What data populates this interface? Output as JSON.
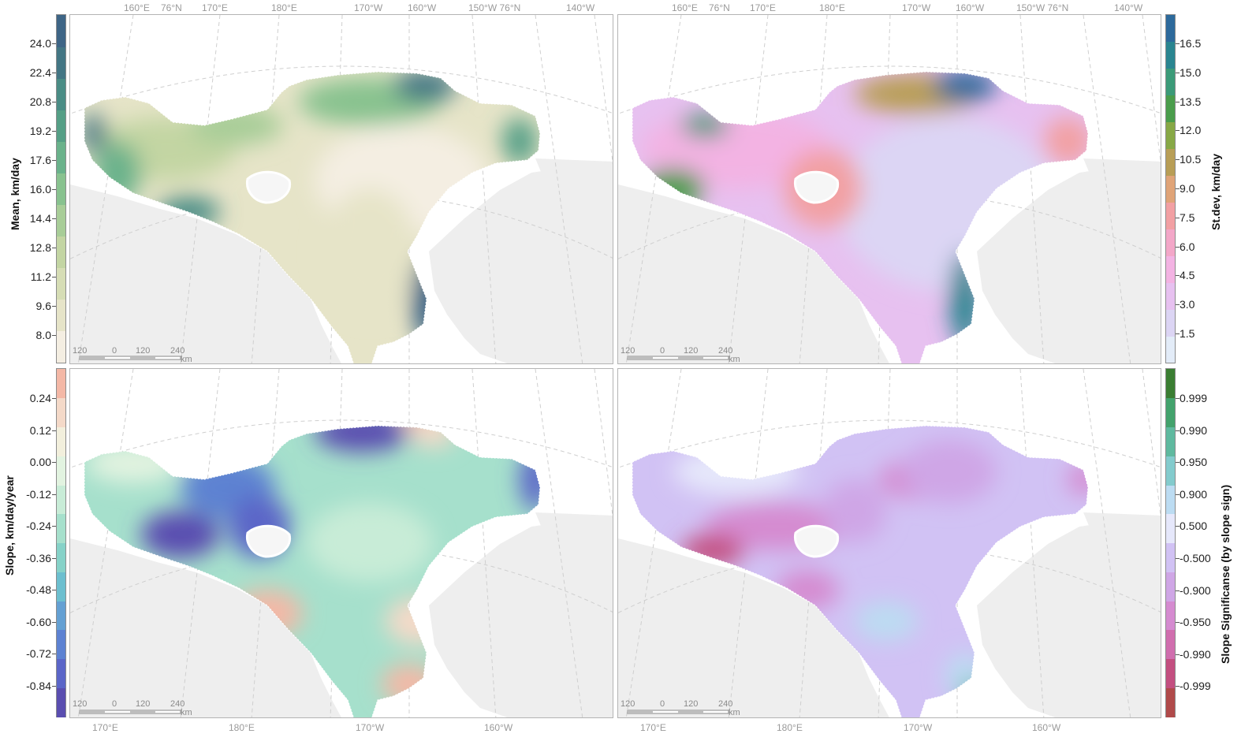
{
  "panels": [
    {
      "id": "mean",
      "colorbar_title": "Mean, km/day",
      "ticks": [
        "24.0",
        "22.4",
        "20.8",
        "19.2",
        "17.6",
        "16.0",
        "14.4",
        "12.8",
        "11.2",
        "9.6",
        "8.0"
      ],
      "palette": [
        "#f4eee2",
        "#e6e4c8",
        "#d6ddb5",
        "#c3d5a3",
        "#a8cd98",
        "#88c28f",
        "#6ab28b",
        "#559f86",
        "#4a8c85",
        "#437684",
        "#3e6586"
      ]
    },
    {
      "id": "stdev",
      "colorbar_title": "St.dev, km/day",
      "ticks": [
        "16.5",
        "15.0",
        "13.5",
        "12.0",
        "10.5",
        "9.0",
        "7.5",
        "6.0",
        "4.5",
        "3.0",
        "1.5"
      ],
      "palette": [
        "#e3ecf8",
        "#dcd5f4",
        "#e7c1f0",
        "#f3b3e3",
        "#f3a7c8",
        "#f2a0a3",
        "#e0a478",
        "#b89e56",
        "#87a846",
        "#4a9d4c",
        "#3b9a78",
        "#2a8590",
        "#2d6a9c"
      ]
    },
    {
      "id": "slope",
      "colorbar_title": "Slope, km/day/year",
      "ticks": [
        "0.24",
        "0.12",
        "0.00",
        "-0.12",
        "-0.24",
        "-0.36",
        "-0.48",
        "-0.60",
        "-0.72",
        "-0.84"
      ],
      "palette": [
        "#5a4eb0",
        "#5b66c8",
        "#5d82d2",
        "#64a0d3",
        "#6cbfcf",
        "#86d2c8",
        "#a6e0cc",
        "#c8ecd7",
        "#e2f3e0",
        "#f2efdc",
        "#f4d9c8",
        "#f4b8a6"
      ]
    },
    {
      "id": "signif",
      "colorbar_title": "Slope Significanse (by slope sign)",
      "ticks": [
        "0.999",
        "0.990",
        "0.950",
        "0.900",
        "0.500",
        "-0.500",
        "-0.900",
        "-0.950",
        "-0.990",
        "-0.999"
      ],
      "palette": [
        "#b04a4a",
        "#c34f80",
        "#d06eae",
        "#d58bd0",
        "#cfa6e6",
        "#d1c2f4",
        "#e6e8fb",
        "#bcdcf2",
        "#83cbcd",
        "#5fb99f",
        "#43a26c",
        "#3a7d32"
      ]
    }
  ],
  "top_coords": [
    "160°E",
    "76°N",
    "170°E",
    "180°E",
    "170°W",
    "160°W",
    "150°W 76°N",
    "140°W"
  ],
  "bottom_coords": [
    "170°E",
    "180°E",
    "170°W",
    "160°W"
  ],
  "scalebar": {
    "labels": [
      "120",
      "0",
      "120",
      "240"
    ],
    "unit": "km"
  },
  "colors": {
    "land": "#eeeeee",
    "coast": "#ffffff",
    "grid": "#cfcfcf"
  }
}
